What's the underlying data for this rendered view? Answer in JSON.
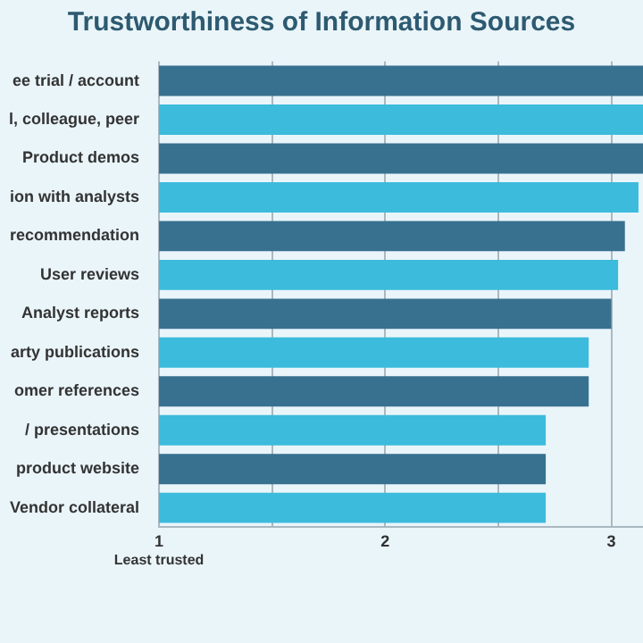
{
  "chart_data": {
    "type": "bar",
    "orientation": "horizontal",
    "title": "Trustworthiness of Information Sources",
    "categories": [
      "ee trial / account",
      "l, colleague, peer",
      "Product demos",
      "ion with analysts",
      "recommendation",
      "User reviews",
      "Analyst reports",
      "arty publications",
      "omer references",
      "/ presentations",
      "product website",
      "Vendor collateral"
    ],
    "values": [
      3.14,
      3.14,
      3.14,
      3.12,
      3.06,
      3.03,
      3.0,
      2.9,
      2.9,
      2.71,
      2.71,
      2.71
    ],
    "colors": [
      "#37718f",
      "#3cbbdc",
      "#37718f",
      "#3cbbdc",
      "#37718f",
      "#3cbbdc",
      "#37718f",
      "#3cbbdc",
      "#37718f",
      "#3cbbdc",
      "#37718f",
      "#3cbbdc"
    ],
    "xlim": [
      1,
      3.14
    ],
    "xticks": [
      1,
      {
        "value": 1.5,
        "label": null
      },
      2,
      {
        "value": 2.5,
        "label": null
      },
      3
    ],
    "grid": "x",
    "legend": false,
    "annotations": [
      "Least trusted"
    ]
  }
}
